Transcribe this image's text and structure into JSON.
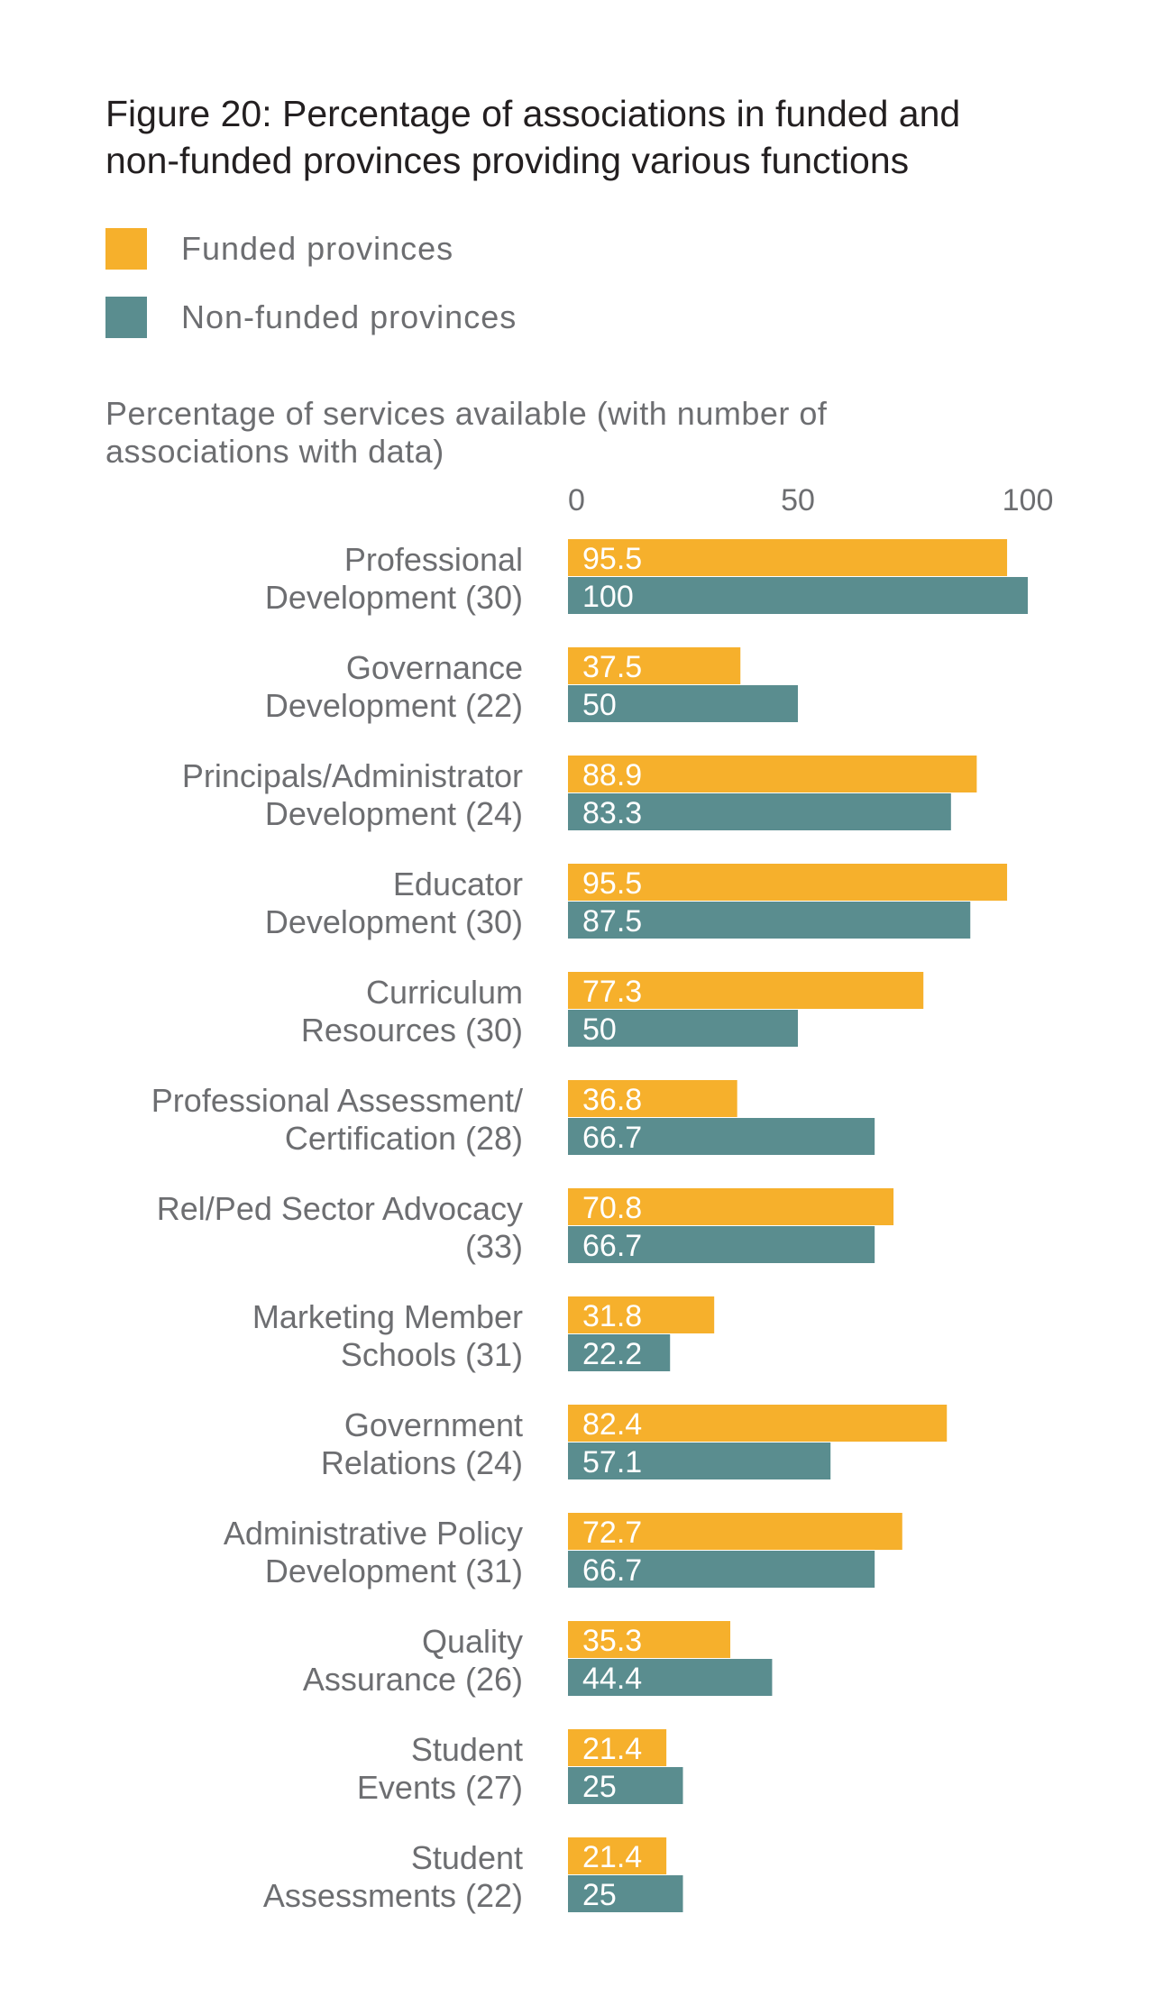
{
  "figure": {
    "title_lines": [
      "Figure 20: Percentage of associations in funded and",
      "non-funded provinces providing various functions"
    ],
    "subtitle_lines": [
      "Percentage of services available (with number of",
      "associations with data)"
    ]
  },
  "legend": [
    {
      "label": "Funded provinces",
      "color": "#f6b02c"
    },
    {
      "label": "Non-funded provinces",
      "color": "#5a8d8f"
    }
  ],
  "chart_data": {
    "type": "bar",
    "orientation": "horizontal",
    "title": "Figure 20: Percentage of associations in funded and non-funded provinces providing various functions",
    "xlabel": "Percentage of services available (with number of associations with data)",
    "xlim": [
      0,
      100
    ],
    "xticks": [
      0,
      50,
      100
    ],
    "categories": [
      [
        "Professional",
        "Development (30)"
      ],
      [
        "Governance",
        "Development (22)"
      ],
      [
        "Principals/Administrator",
        "Development (24)"
      ],
      [
        "Educator",
        "Development (30)"
      ],
      [
        "Curriculum",
        "Resources (30)"
      ],
      [
        "Professional Assessment/",
        "Certification (28)"
      ],
      [
        "Rel/Ped Sector Advocacy",
        "(33)"
      ],
      [
        "Marketing Member",
        "Schools (31)"
      ],
      [
        "Government",
        "Relations (24)"
      ],
      [
        "Administrative Policy",
        "Development (31)"
      ],
      [
        "Quality",
        "Assurance (26)"
      ],
      [
        "Student",
        "Events (27)"
      ],
      [
        "Student",
        "Assessments (22)"
      ]
    ],
    "series": [
      {
        "name": "Funded provinces",
        "color": "#f6b02c",
        "values": [
          95.5,
          37.5,
          88.9,
          95.5,
          77.3,
          36.8,
          70.8,
          31.8,
          82.4,
          72.7,
          35.3,
          21.4,
          21.4
        ],
        "labels": [
          "95.5",
          "37.5",
          "88.9",
          "95.5",
          "77.3",
          "36.8",
          "70.8",
          "31.8",
          "82.4",
          "72.7",
          "35.3",
          "21.4",
          "21.4"
        ]
      },
      {
        "name": "Non-funded provinces",
        "color": "#5a8d8f",
        "values": [
          100,
          50,
          83.3,
          87.5,
          50,
          66.7,
          66.7,
          22.2,
          57.1,
          66.7,
          44.4,
          25,
          25
        ],
        "labels": [
          "100",
          "50",
          "83.3",
          "87.5",
          "50",
          "66.7",
          "66.7",
          "22.2",
          "57.1",
          "66.7",
          "44.4",
          "25",
          "25"
        ]
      }
    ]
  }
}
